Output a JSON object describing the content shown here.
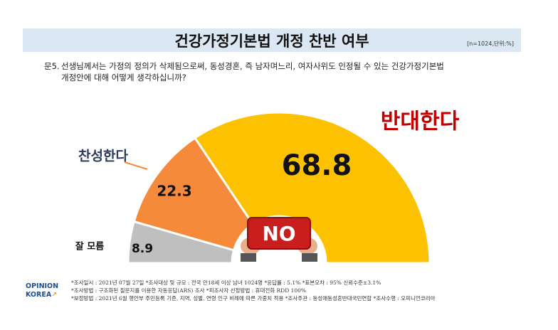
{
  "title": "건강가정기본법 개정 찬반 여부",
  "sample_note": "[n=1024,단위:%]",
  "question": {
    "number": "문5.",
    "line1": "선생님께서는 가정의 정의가 삭제됨으로써, 동성경혼, 즉 남자며느리, 여자사위도 인정될 수 있는 건강가정기본법",
    "line2": "개정안에 대해 어떻게 생각하십니까?"
  },
  "chart_data": {
    "type": "pie",
    "subtype": "half-donut",
    "categories": [
      "잘 모름",
      "찬성한다",
      "반대한다"
    ],
    "values": [
      8.9,
      22.3,
      68.8
    ],
    "value_labels": [
      "8.9",
      "22.3",
      "68.8"
    ],
    "colors": [
      "#bfbfbf",
      "#f58b3a",
      "#fcc100"
    ],
    "category_label_colors": [
      "#111111",
      "#2e3a59",
      "#c00000"
    ],
    "center_badge": "NO"
  },
  "footer": {
    "line1": "*조사일시 : 2021년 07월 27일  *조사대상 및 규모 : 전국 만18세 이상 남녀 1024명 *응답률 : 5.1%  *표본오차 : 95% 신뢰수준±3.1%",
    "line2": "*조사방법 : 구조화된 질문지를 이용한 자동응답(ARS) 조사 *피조사자 선정방법 : 휴대전화 RDD 100%",
    "line3": "*보정방법 : 2021년 6월 행안부 주민등록 기준, 지역, 성별, 연령 인구 비례에 따른 가중치 적용  *조사주관 : 동성애동성혼반대국민연합  *조사수행 : 오피니언코리아"
  },
  "logo": {
    "line1": "OPINION",
    "line2": "KOREA"
  }
}
